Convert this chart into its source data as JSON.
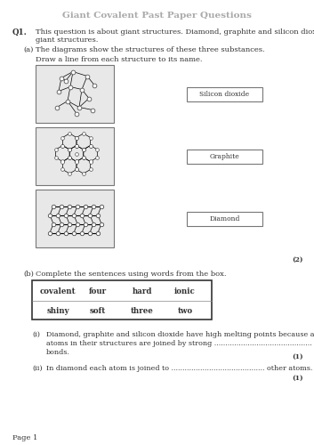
{
  "title": "Giant Covalent Past Paper Questions",
  "title_fontsize": 7.5,
  "title_color": "#aaaaaa",
  "background_color": "#ffffff",
  "text_color": "#333333",
  "q1_label": "Q1.",
  "q1_text": "This question is about giant structures. Diamond, graphite and silicon dioxide all have\ngiant structures.",
  "qa_label": "(a)",
  "qa_text": "The diagrams show the structures of these three substances.",
  "qa_instruction": "Draw a line from each structure to its name.",
  "name_boxes": [
    "Silicon dioxide",
    "Graphite",
    "Diamond"
  ],
  "marks_a": "(2)",
  "qb_label": "(b)",
  "qb_text": "Complete the sentences using words from the box.",
  "box_words_row1": [
    "covalent",
    "four",
    "hard",
    "ionic"
  ],
  "box_words_row2": [
    "shiny",
    "soft",
    "three",
    "two"
  ],
  "qi_label": "(i)",
  "qi_text_line1": "Diamond, graphite and silicon dioxide have high melting points because all the",
  "qi_text_line2": "atoms in their structures are joined by strong ............................................",
  "qi_text_line3": "bonds.",
  "marks_i": "(1)",
  "qii_label": "(ii)",
  "qii_text": "In diamond each atom is joined to .......................................... other atoms.",
  "marks_ii": "(1)",
  "page_label": "Page 1",
  "font_family": "DejaVu Serif"
}
